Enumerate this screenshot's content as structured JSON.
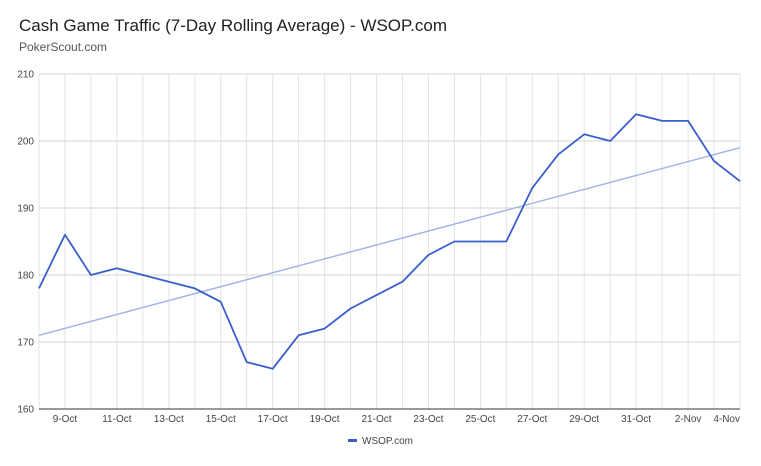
{
  "chart_data": {
    "type": "line",
    "title": "Cash Game Traffic (7-Day Rolling Average) - WSOP.com",
    "subtitle": "PokerScout.com",
    "xlabel": "",
    "ylabel": "",
    "x": [
      "8-Oct",
      "9-Oct",
      "10-Oct",
      "11-Oct",
      "12-Oct",
      "13-Oct",
      "14-Oct",
      "15-Oct",
      "16-Oct",
      "17-Oct",
      "18-Oct",
      "19-Oct",
      "20-Oct",
      "21-Oct",
      "22-Oct",
      "23-Oct",
      "24-Oct",
      "25-Oct",
      "26-Oct",
      "27-Oct",
      "28-Oct",
      "29-Oct",
      "30-Oct",
      "31-Oct",
      "1-Nov",
      "2-Nov",
      "3-Nov",
      "4-Nov"
    ],
    "x_tick_labels": [
      "9-Oct",
      "11-Oct",
      "13-Oct",
      "15-Oct",
      "17-Oct",
      "19-Oct",
      "21-Oct",
      "23-Oct",
      "25-Oct",
      "27-Oct",
      "29-Oct",
      "31-Oct",
      "2-Nov",
      "4-Nov"
    ],
    "ylim": [
      160,
      210
    ],
    "y_ticks": [
      160,
      170,
      180,
      190,
      200,
      210
    ],
    "grid": true,
    "legend_position": "bottom",
    "series": [
      {
        "name": "WSOP.com",
        "color": "#3a5fcd",
        "values": [
          178,
          186,
          180,
          181,
          180,
          179,
          178,
          176,
          167,
          166,
          171,
          172,
          175,
          177,
          179,
          183,
          185,
          185,
          185,
          193,
          198,
          201,
          200,
          204,
          203,
          203,
          197,
          194
        ]
      }
    ],
    "trendline": {
      "color": "#9fb3e8",
      "start": 171,
      "end": 199
    }
  }
}
